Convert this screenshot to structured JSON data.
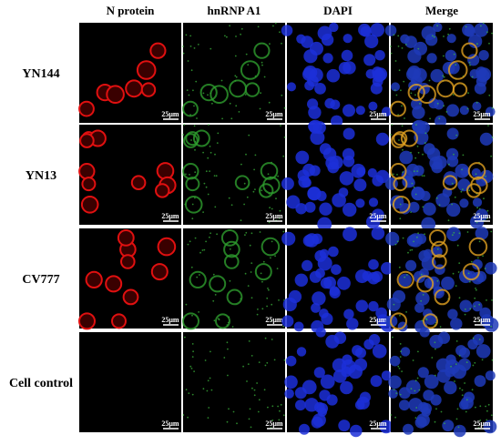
{
  "columns": [
    "N protein",
    "hnRNP A1",
    "DAPI",
    "Merge"
  ],
  "rows": [
    "YN144",
    "YN13",
    "CV777",
    "Cell control"
  ],
  "scale_bar_label": "25μm"
}
